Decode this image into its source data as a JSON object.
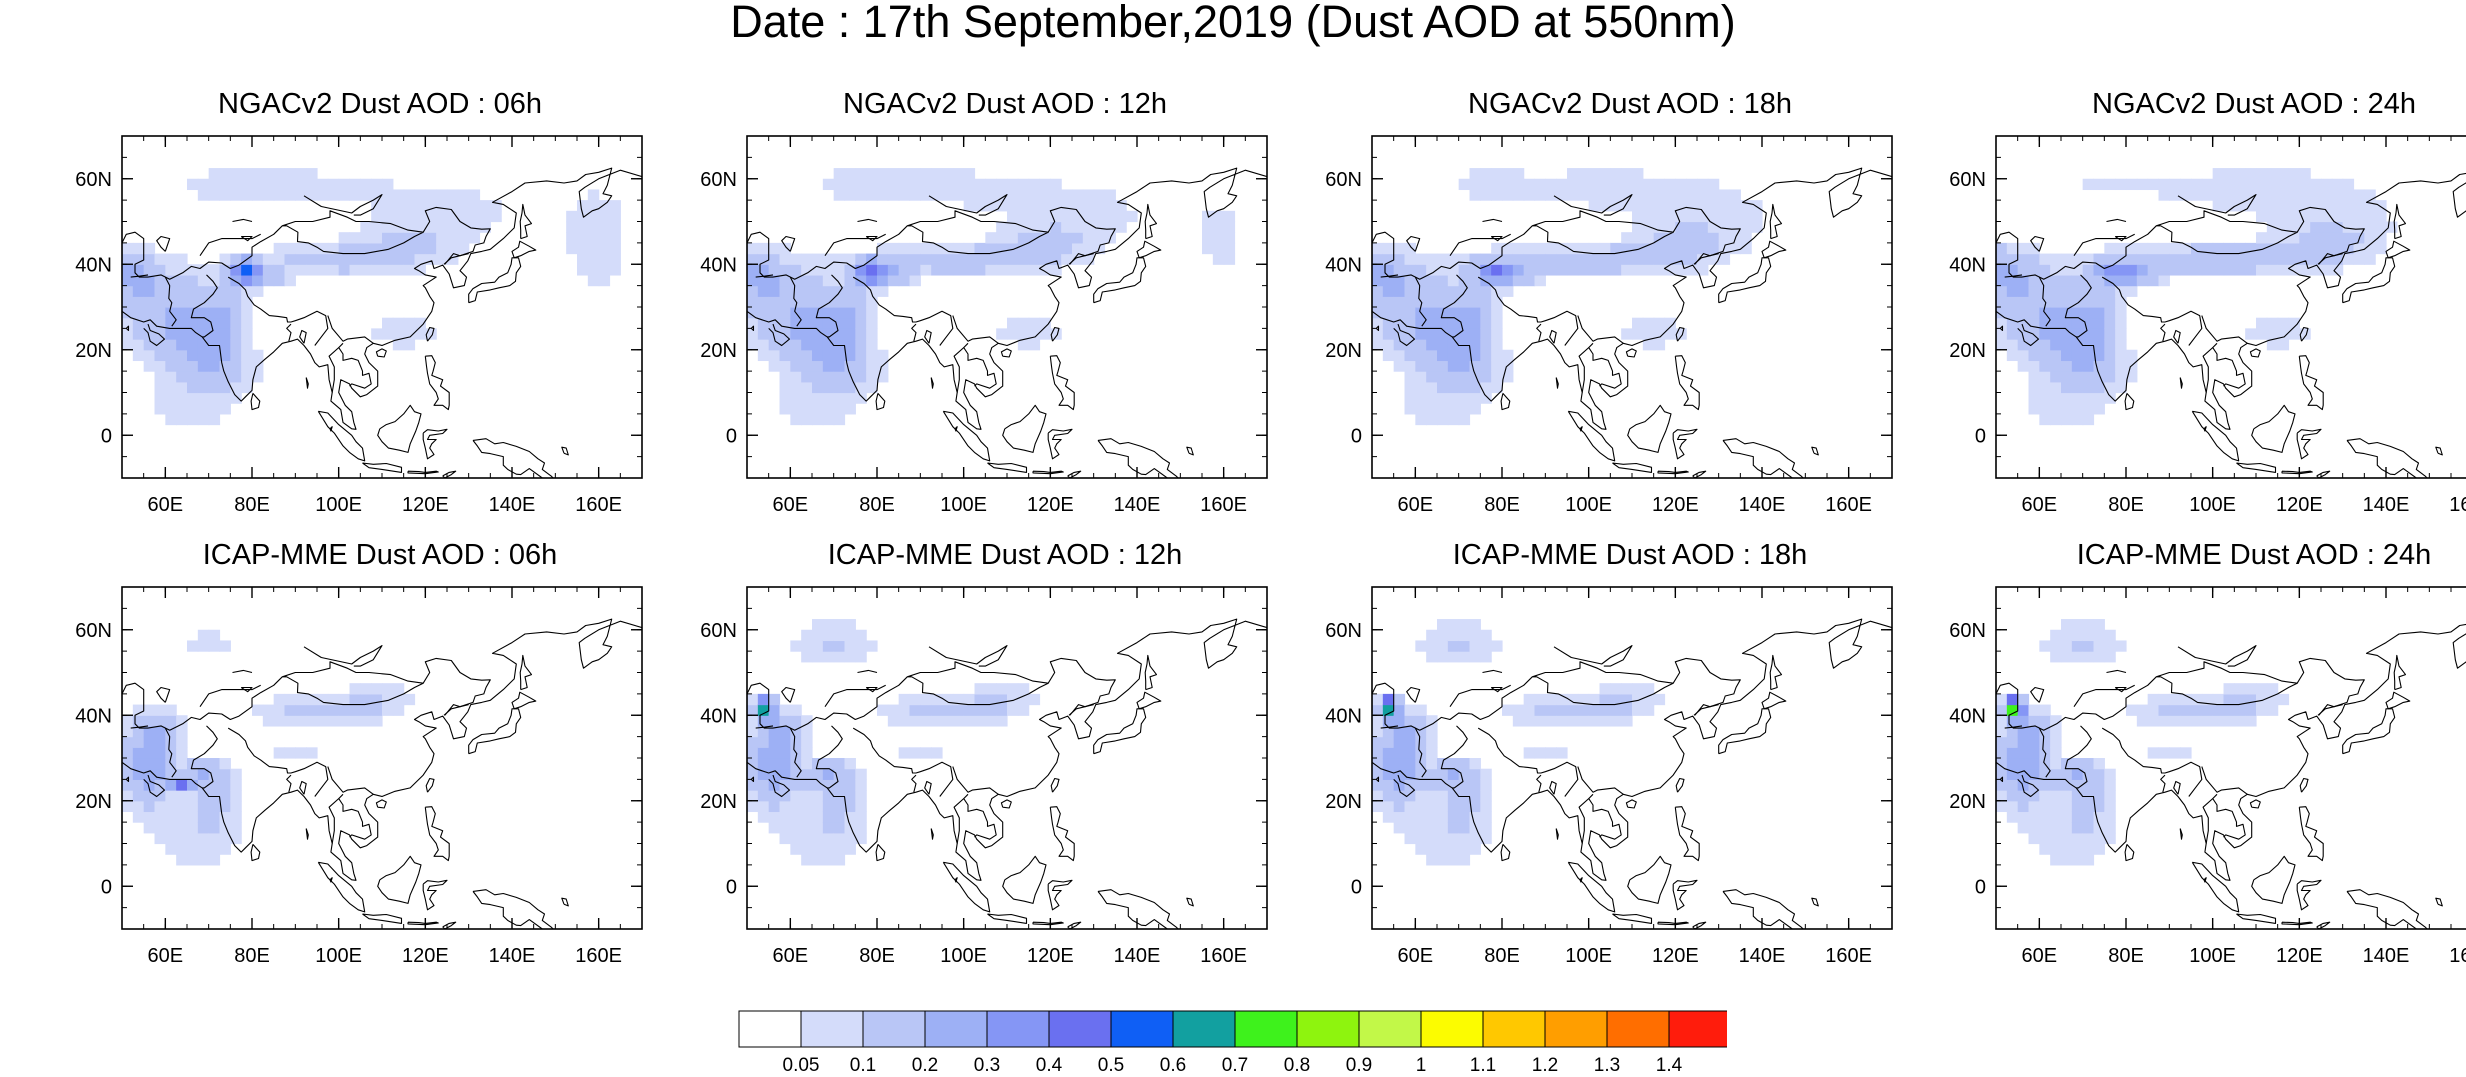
{
  "title": "Date : 17th September,2019 (Dust AOD at 550nm)",
  "panels": [
    {
      "title": "NGACv2 Dust AOD : 06h",
      "model": "ngac",
      "hour": 6
    },
    {
      "title": "NGACv2 Dust AOD : 12h",
      "model": "ngac",
      "hour": 12
    },
    {
      "title": "NGACv2 Dust AOD : 18h",
      "model": "ngac",
      "hour": 18
    },
    {
      "title": "NGACv2 Dust AOD : 24h",
      "model": "ngac",
      "hour": 24
    },
    {
      "title": "ICAP-MME Dust AOD : 06h",
      "model": "icap",
      "hour": 6
    },
    {
      "title": "ICAP-MME Dust AOD : 12h",
      "model": "icap",
      "hour": 12
    },
    {
      "title": "ICAP-MME Dust AOD : 18h",
      "model": "icap",
      "hour": 18
    },
    {
      "title": "ICAP-MME Dust AOD : 24h",
      "model": "icap",
      "hour": 24
    }
  ],
  "map": {
    "lon_range": [
      50,
      170
    ],
    "lat_range": [
      -10,
      70
    ],
    "x_ticks": [
      {
        "value": 60,
        "label": "60E"
      },
      {
        "value": 80,
        "label": "80E"
      },
      {
        "value": 100,
        "label": "100E"
      },
      {
        "value": 120,
        "label": "120E"
      },
      {
        "value": 140,
        "label": "140E"
      },
      {
        "value": 160,
        "label": "160E"
      }
    ],
    "y_ticks": [
      {
        "value": 0,
        "label": "0"
      },
      {
        "value": 20,
        "label": "20N"
      },
      {
        "value": 40,
        "label": "40N"
      },
      {
        "value": 60,
        "label": "60N"
      }
    ]
  },
  "colorbar": {
    "labels": [
      "0.05",
      "0.1",
      "0.2",
      "0.3",
      "0.4",
      "0.5",
      "0.6",
      "0.7",
      "0.8",
      "0.9",
      "1",
      "1.1",
      "1.2",
      "1.3",
      "1.4"
    ],
    "colors": [
      "#ffffff",
      "#d4dcfa",
      "#b9c6f6",
      "#9db0f5",
      "#8596f5",
      "#6a70f0",
      "#0f5ff5",
      "#12a0a0",
      "#3ef21c",
      "#8ef40e",
      "#c2f848",
      "#fcfc00",
      "#ffc800",
      "#ff9e00",
      "#ff6e00",
      "#ff1c0c"
    ]
  }
}
